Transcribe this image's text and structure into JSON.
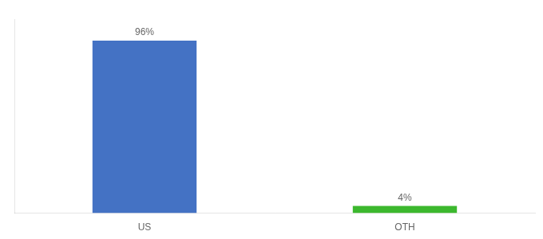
{
  "chart_data": {
    "type": "bar",
    "categories": [
      "US",
      "OTH"
    ],
    "values": [
      96,
      4
    ],
    "value_labels": [
      "96%",
      "4%"
    ],
    "colors": [
      "#4472c4",
      "#3cb82e"
    ],
    "ylim": [
      0,
      108
    ],
    "data_labels": true,
    "tick_labels": "x",
    "grid": false
  }
}
